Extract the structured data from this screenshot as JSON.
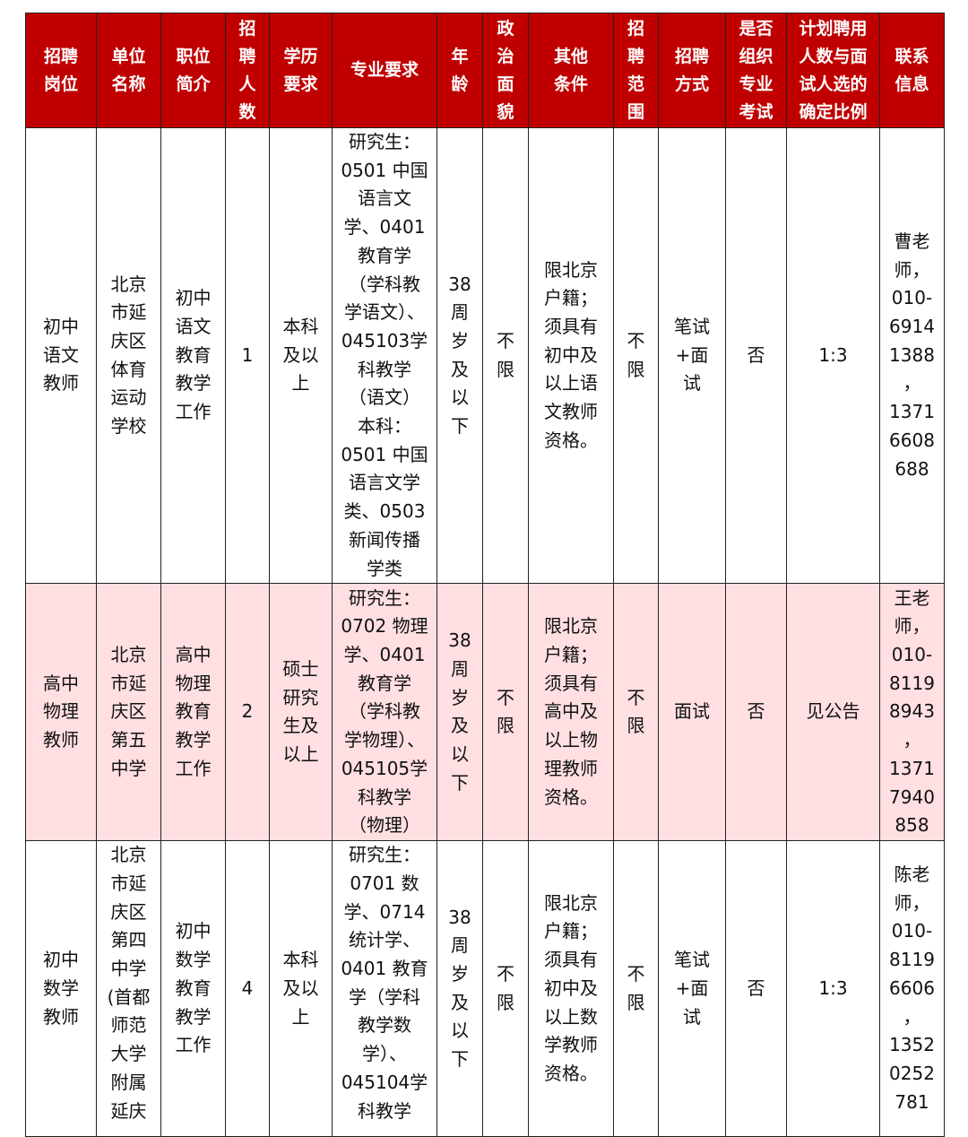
{
  "headers": [
    "招聘\n岗位",
    "单位\n名称",
    "职位\n简介",
    "招\n聘\n人\n数",
    "学历\n要求",
    "专业要求",
    "年\n龄",
    "政\n治\n面\n貌",
    "其他\n条件",
    "招\n聘\n范\n围",
    "招聘\n方式",
    "是否\n组织\n专业\n考试",
    "计划聘用\n人数与面\n试人选的\n确定比例",
    "联系\n信息"
  ],
  "rows": [
    [
      "初中\n语文\n教师",
      "北京\n市延\n庆区\n体育\n运动\n学校",
      "初中\n语文\n教育\n教学\n工作",
      "1",
      "本科\n及以\n上",
      "研究生：\n0501 中国\n语言文\n学、0401\n教育学\n（学科教\n学语文）、\n045103学\n科教学\n（语文）\n本科：\n0501 中国\n语言文学\n类、0503\n新闻传播\n学类",
      "38\n周\n岁\n及\n以\n下",
      "不\n限",
      "限北京\n户籍；\n须具有\n初中及\n以上语\n文教师\n资格。",
      "不\n限",
      "笔试\n+面\n试",
      "否",
      "1:3",
      "曹老\n师，\n010-\n6914\n1388\n，\n1371\n6608\n688"
    ],
    [
      "高中\n物理\n教师",
      "北京\n市延\n庆区\n第五\n中学",
      "高中\n物理\n教育\n教学\n工作",
      "2",
      "硕士\n研究\n生及\n以上",
      "研究生：\n0702 物理\n学、0401\n教育学\n（学科教\n学物理）、\n045105学\n科教学\n（物理）",
      "38\n周\n岁\n及\n以\n下",
      "不\n限",
      "限北京\n户籍；\n须具有\n高中及\n以上物\n理教师\n资格。",
      "不\n限",
      "面试",
      "否",
      "见公告",
      "王老\n师，\n010-\n8119\n8943\n，\n1371\n7940\n858"
    ],
    [
      "初中\n数学\n教师",
      "北京\n市延\n庆区\n第四\n中学\n(首都\n师范\n大学\n附属\n延庆",
      "初中\n数学\n教育\n教学\n工作",
      "4",
      "本科\n及以\n上",
      "研究生：\n0701 数\n学、0714\n统计学、\n0401 教育\n学（学科\n教学数\n学）、\n045104学\n科教学",
      "38\n周\n岁\n及\n以\n下",
      "不\n限",
      "限北京\n户籍；\n须具有\n初中及\n以上数\n学教师\n资格。",
      "不\n限",
      "笔试\n+面\n试",
      "否",
      "1:3",
      "陈老\n师，\n010-\n8119\n6606\n，\n1352\n0252\n781"
    ]
  ],
  "colors": {
    "header_bg": "#c00000",
    "highlight_row": "#ffdfe2"
  }
}
